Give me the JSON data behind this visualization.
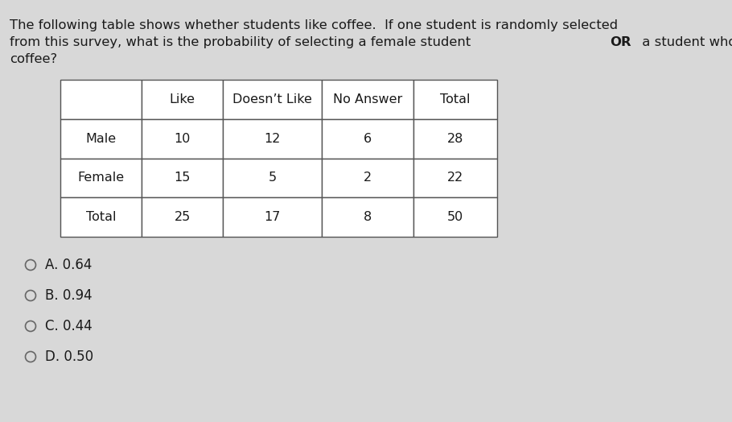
{
  "title_part1": "The following table shows whether students like coffee.  If one student is randomly selected",
  "title_part2a": "from this survey, what is the probability of selecting a female student ",
  "title_part2b": "OR",
  "title_part2c": " a student who likes",
  "title_part3": "coffee?",
  "col_headers": [
    "",
    "Like",
    "Doesn’t Like",
    "No Answer",
    "Total"
  ],
  "rows": [
    [
      "Male",
      "10",
      "12",
      "6",
      "28"
    ],
    [
      "Female",
      "15",
      "5",
      "2",
      "22"
    ],
    [
      "Total",
      "25",
      "17",
      "8",
      "50"
    ]
  ],
  "choices": [
    "A. 0.64",
    "B. 0.94",
    "C. 0.44",
    "D. 0.50"
  ],
  "bg_color": "#d8d8d8",
  "text_color": "#1a1a1a",
  "title_fontsize": 11.8,
  "table_fontsize": 11.5,
  "choice_fontsize": 12.0
}
